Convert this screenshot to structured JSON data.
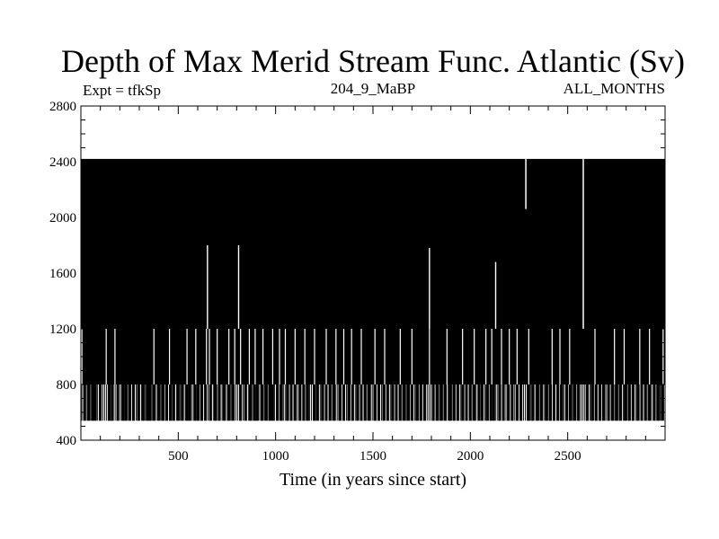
{
  "chart_data": {
    "type": "line",
    "title": "Depth of Max Merid Stream Func. Atlantic (Sv)",
    "subtitle_left": "Expt = tfkSp",
    "subtitle_center": "204_9_MaBP",
    "subtitle_right": "ALL_MONTHS",
    "xlabel": "Time (in years since start)",
    "ylabel": "",
    "xlim": [
      0,
      3000
    ],
    "ylim": [
      400,
      2800
    ],
    "x_ticks": [
      500,
      1000,
      1500,
      2000,
      2500
    ],
    "y_ticks": [
      400,
      800,
      1200,
      1600,
      2000,
      2400,
      2800
    ],
    "x_tick_labels": [
      "500",
      "1000",
      "1500",
      "2000",
      "2500"
    ],
    "y_tick_labels": [
      "400",
      "800",
      "1200",
      "1600",
      "2000",
      "2400",
      "2800"
    ],
    "levels": [
      540,
      800,
      1200,
      2420
    ],
    "series": [
      {
        "description_note": "",
        "x": [
          0,
          3000
        ],
        "y_max": 2420,
        "y_typical_min": 800,
        "dips_to_540": [
          20,
          40,
          60,
          75,
          100,
          145,
          160,
          190,
          215,
          230,
          250,
          270,
          295,
          320,
          340,
          355,
          375,
          400,
          420,
          440,
          460,
          475,
          500,
          520,
          545,
          560,
          585,
          600,
          620,
          640,
          665,
          690,
          710,
          735,
          760,
          780,
          820,
          845,
          870,
          890,
          905,
          930,
          950,
          970,
          985,
          1010,
          1030,
          1060,
          1080,
          1100,
          1125,
          1145,
          1165,
          1200,
          1215,
          1240,
          1260,
          1280,
          1300,
          1330,
          1350,
          1375,
          1395,
          1420,
          1440,
          1460,
          1480,
          1510,
          1530,
          1555,
          1575,
          1600,
          1620,
          1640,
          1660,
          1680,
          1700,
          1725,
          1745,
          1765,
          1810,
          1830,
          1850,
          1870,
          1895,
          1915,
          1935,
          1960,
          1980,
          2000,
          2020,
          2045,
          2060,
          2085,
          2105,
          2120,
          2150,
          2170,
          2195,
          2215,
          2240,
          2260,
          2300,
          2320,
          2345,
          2365,
          2390,
          2410,
          2430,
          2450,
          2470,
          2495,
          2515,
          2535,
          2555,
          2600,
          2625,
          2645,
          2665,
          2685,
          2710,
          2730,
          2750,
          2770,
          2795,
          2815,
          2835,
          2860,
          2880,
          2900,
          2920,
          2945,
          2965,
          2985
        ],
        "dips_to_1200": [
          5,
          130,
          175,
          375,
          455,
          545,
          590,
          645,
          660,
          700,
          760,
          790,
          820,
          865,
          895,
          935,
          985,
          1020,
          1050,
          1100,
          1150,
          1200,
          1260,
          1310,
          1350,
          1390,
          1440,
          1510,
          1560,
          1640,
          1700,
          1790,
          1880,
          1960,
          2020,
          2080,
          2110,
          2160,
          2200,
          2240,
          2300,
          2420,
          2460,
          2510,
          2640,
          2740,
          2790,
          2870,
          2920,
          2990
        ],
        "spikes": [
          {
            "x": 650,
            "y": 1800
          },
          {
            "x": 810,
            "y": 1800
          },
          {
            "x": 1790,
            "y": 1780
          },
          {
            "x": 2130,
            "y": 1680
          }
        ],
        "white_gaps": [
          {
            "x": 2285,
            "y_from": 2060,
            "y_to": 2420
          },
          {
            "x": 2580,
            "y_from": 1200,
            "y_to": 2420
          }
        ]
      }
    ]
  }
}
